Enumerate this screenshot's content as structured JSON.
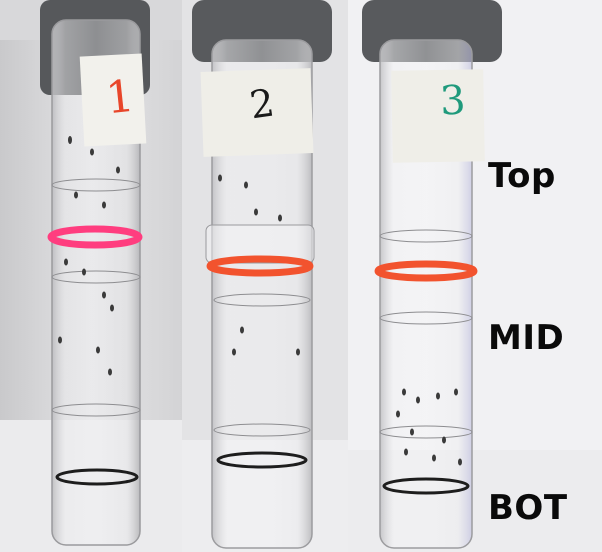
{
  "tube_labels": [
    "1",
    "2",
    "3"
  ],
  "region_labels": {
    "top": "Top",
    "mid": "MID",
    "bot": "BOT"
  },
  "colors": {
    "ink_tube_1": "#e8462a",
    "ink_tube_2": "#1a1a1a",
    "ink_tube_3": "#1f9a7c",
    "band_tube_1": "#ff3d7f",
    "band_tube_2": "#f2532e",
    "band_tube_3": "#f2532e",
    "stopper": "#55575a",
    "label_text": "#0a0a0a"
  }
}
